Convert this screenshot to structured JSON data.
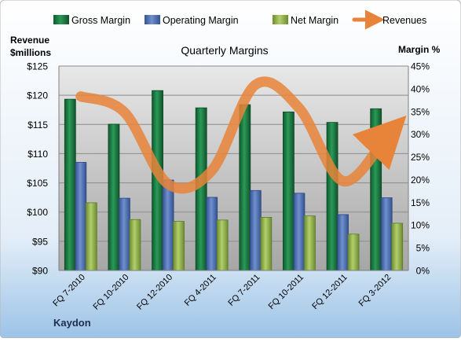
{
  "chart_data": {
    "type": "bar",
    "title": "Quarterly Margins",
    "company": "Kaydon",
    "y_left_label": [
      "Revenue",
      "$millions"
    ],
    "y_right_label": "Margin %",
    "y_left_lim": [
      90,
      125
    ],
    "y_left_ticks": [
      "$90",
      "$95",
      "$100",
      "$105",
      "$110",
      "$115",
      "$120",
      "$125"
    ],
    "y_right_lim": [
      0,
      45
    ],
    "y_right_ticks": [
      "0%",
      "5%",
      "10%",
      "15%",
      "20%",
      "25%",
      "30%",
      "35%",
      "40%",
      "45%"
    ],
    "categories": [
      "FQ 7-2010",
      "FQ 10-2010",
      "FQ 12-2010",
      "FQ 4-2011",
      "FQ 7-2011",
      "FQ 10-2011",
      "FQ 12-2011",
      "FQ 3-2012"
    ],
    "series": [
      {
        "name": "Gross Margin",
        "kind": "bar",
        "axis": "right",
        "values": [
          37.7,
          32.2,
          39.6,
          35.8,
          36.5,
          34.9,
          32.6,
          35.6
        ],
        "color": "#1e7d46"
      },
      {
        "name": "Operating Margin",
        "kind": "bar",
        "axis": "right",
        "values": [
          23.8,
          15.9,
          19.9,
          16.1,
          17.6,
          17.0,
          12.3,
          16.0
        ],
        "color": "#4f6fae"
      },
      {
        "name": "Net Margin",
        "kind": "bar",
        "axis": "right",
        "values": [
          14.9,
          11.2,
          10.8,
          11.1,
          11.7,
          12.0,
          8.0,
          10.4
        ],
        "color": "#8fb14a"
      },
      {
        "name": "Revenues",
        "kind": "line",
        "axis": "left",
        "values": [
          119.8,
          117.1,
          104.8,
          107.1,
          121.8,
          117.8,
          105.3,
          113.0
        ],
        "color": "#e8843a"
      }
    ],
    "grid": true,
    "legend_position": "top"
  }
}
